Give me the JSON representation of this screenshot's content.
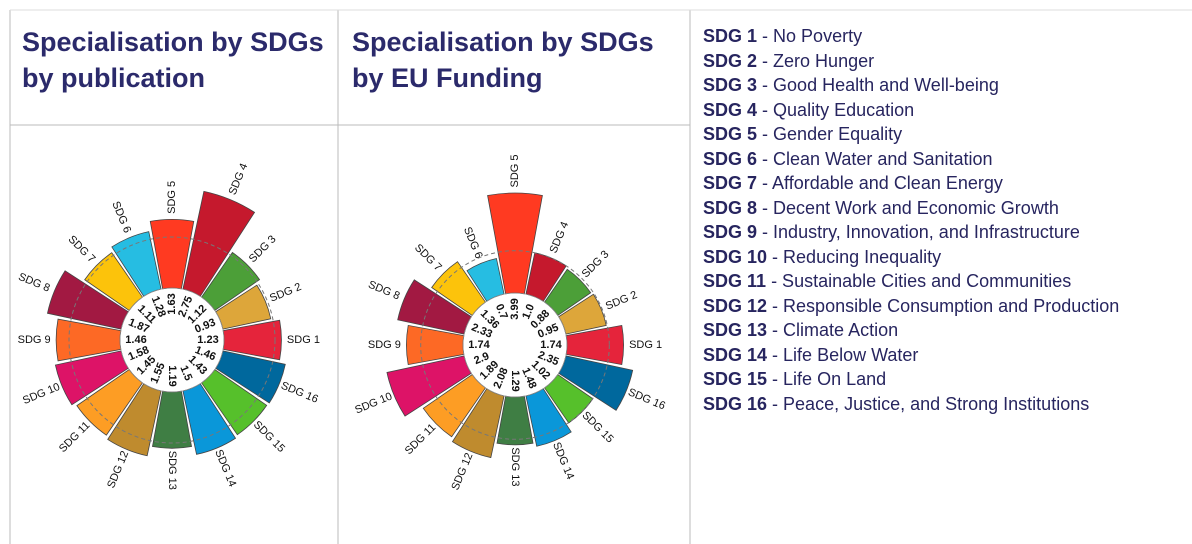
{
  "chart_data": [
    {
      "type": "polar_bar",
      "title": "Specialisation by SDGs by publication",
      "categories": [
        "SDG 1",
        "SDG 2",
        "SDG 3",
        "SDG 4",
        "SDG 5",
        "SDG 6",
        "SDG 7",
        "SDG 8",
        "SDG 9",
        "SDG 10",
        "SDG 11",
        "SDG 12",
        "SDG 13",
        "SDG 14",
        "SDG 15",
        "SDG 16"
      ],
      "values": [
        1.23,
        0.93,
        1.12,
        2.75,
        1.63,
        1.28,
        1.11,
        1.87,
        1.46,
        1.58,
        1.45,
        1.55,
        1.19,
        1.5,
        1.43,
        1.46
      ],
      "value_labels": [
        "1.23",
        "0.93",
        "1.12",
        "2.75",
        "1.63",
        "1.28",
        "1.11",
        "1.87",
        "1.46",
        "1.58",
        "1.45",
        "1.55",
        "1.19",
        "1.5",
        "1.43",
        "1.46"
      ],
      "colors": [
        "#E5243B",
        "#DDA63A",
        "#4C9F38",
        "#C5192D",
        "#FF3A21",
        "#26BDE2",
        "#FCC30B",
        "#A21942",
        "#FD6925",
        "#DD1367",
        "#FD9D24",
        "#BF8B2E",
        "#3F7E44",
        "#0A97D9",
        "#56C02B",
        "#00689D"
      ]
    },
    {
      "type": "polar_bar",
      "title": "Specialisation by SDGs by EU Funding",
      "categories": [
        "SDG 1",
        "SDG 2",
        "SDG 3",
        "SDG 4",
        "SDG 5",
        "SDG 6",
        "SDG 7",
        "SDG 8",
        "SDG 9",
        "SDG 10",
        "SDG 11",
        "SDG 12",
        "SDG 13",
        "SDG 14",
        "SDG 15",
        "SDG 16"
      ],
      "values": [
        1.74,
        0.95,
        0.88,
        1.0,
        3.99,
        0.7,
        1.36,
        2.33,
        1.74,
        2.9,
        1.89,
        2.08,
        1.29,
        1.48,
        1.02,
        2.35
      ],
      "value_labels": [
        "1.74",
        "0.95",
        "0.88",
        "1.0",
        "3.99",
        "0.7",
        "1.36",
        "2.33",
        "1.74",
        "2.9",
        "1.89",
        "2.08",
        "1.29",
        "1.48",
        "1.02",
        "2.35"
      ],
      "colors": [
        "#E5243B",
        "#DDA63A",
        "#4C9F38",
        "#C5192D",
        "#FF3A21",
        "#26BDE2",
        "#FCC30B",
        "#A21942",
        "#FD6925",
        "#DD1367",
        "#FD9D24",
        "#BF8B2E",
        "#3F7E44",
        "#0A97D9",
        "#56C02B",
        "#00689D"
      ]
    }
  ],
  "sdg_legend": [
    {
      "code": "SDG 1",
      "name": "- No Poverty"
    },
    {
      "code": "SDG 2",
      "name": "- Zero Hunger"
    },
    {
      "code": "SDG 3",
      "name": "- Good Health and Well-being"
    },
    {
      "code": "SDG 4",
      "name": "- Quality Education"
    },
    {
      "code": "SDG 5",
      "name": "- Gender Equality"
    },
    {
      "code": "SDG 6",
      "name": "- Clean Water and Sanitation"
    },
    {
      "code": "SDG 7",
      "name": "- Affordable and Clean Energy"
    },
    {
      "code": "SDG 8",
      "name": "- Decent Work and Economic Growth"
    },
    {
      "code": "SDG 9",
      "name": "- Industry, Innovation, and Infrastructure"
    },
    {
      "code": "SDG 10",
      "name": "- Reducing Inequality"
    },
    {
      "code": "SDG 11",
      "name": "- Sustainable Cities and Communities"
    },
    {
      "code": "SDG 12",
      "name": "- Responsible Consumption and Production"
    },
    {
      "code": "SDG 13",
      "name": "- Climate Action"
    },
    {
      "code": "SDG 14",
      "name": "- Life Below Water"
    },
    {
      "code": "SDG 15",
      "name": "- Life On Land"
    },
    {
      "code": "SDG 16",
      "name": "- Peace, Justice, and Strong Institutions"
    }
  ]
}
